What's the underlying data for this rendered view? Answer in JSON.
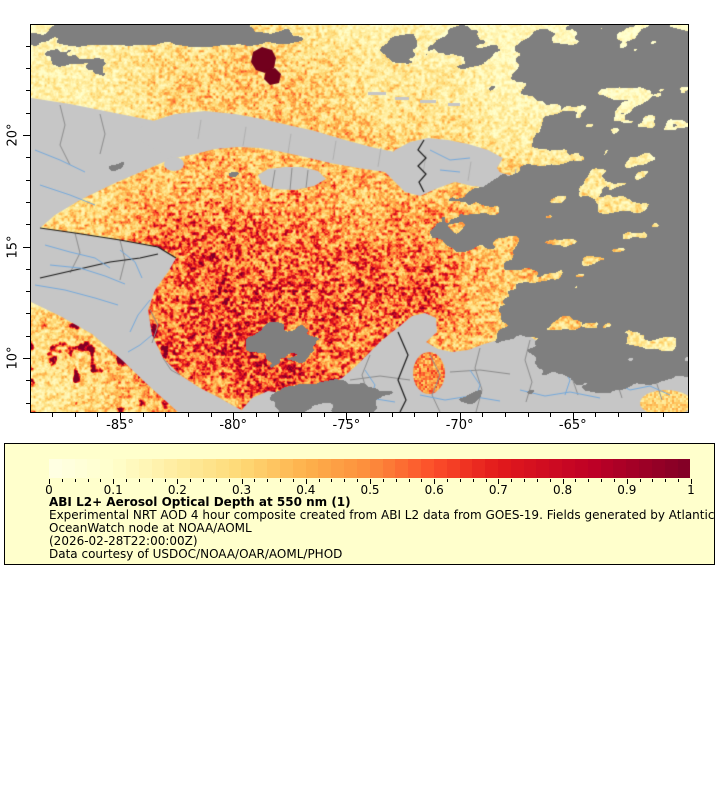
{
  "map_panel": {
    "lat_tick_labels": [
      "20°",
      "15°",
      "10°"
    ],
    "lon_tick_labels": [
      "-85°",
      "-80°",
      "-75°",
      "-70°",
      "-65°"
    ],
    "lat_tick_values": [
      20,
      15,
      10
    ],
    "lon_tick_values": [
      -85,
      -80,
      -75,
      -70,
      -65
    ]
  },
  "legend": {
    "colorbar_tick_labels": [
      "0",
      "0.1",
      "0.2",
      "0.3",
      "0.4",
      "0.5",
      "0.6",
      "0.7",
      "0.8",
      "0.9",
      "1"
    ],
    "colorbar_min": 0,
    "colorbar_max": 1,
    "title": "ABI L2+ Aerosol Optical Depth at 550 nm (1)",
    "description_line1": "Experimental NRT AOD 4 hour composite created from ABI L2 data from GOES-19. Fields generated by Atlantic",
    "description_line2": "OceanWatch node at NOAA/AOML",
    "timestamp": "(2026-02-28T22:00:00Z)",
    "credit": "Data courtesy of USDOC/NOAA/OAR/AOML/PHOD",
    "background": "#ffffcc"
  },
  "colors": {
    "colormap_stops": [
      {
        "t": 0.0,
        "color": "#ffffe5"
      },
      {
        "t": 0.1,
        "color": "#ffffcc"
      },
      {
        "t": 0.2,
        "color": "#ffeda0"
      },
      {
        "t": 0.3,
        "color": "#fed976"
      },
      {
        "t": 0.4,
        "color": "#feb24c"
      },
      {
        "t": 0.5,
        "color": "#fd8d3c"
      },
      {
        "t": 0.6,
        "color": "#fc4e2a"
      },
      {
        "t": 0.7,
        "color": "#e31a1c"
      },
      {
        "t": 0.85,
        "color": "#bd0026"
      },
      {
        "t": 1.0,
        "color": "#800026"
      }
    ],
    "land_no_data": "#c6c6c6",
    "cloud_no_data": "#7f7f7f",
    "river": "#74a9dc",
    "state_border": "#8c8c8c",
    "country_border": "#1a1a1a",
    "fire_plume": "#72001d",
    "frame": "#000000"
  },
  "chart_data": {
    "type": "heatmap",
    "title": "ABI L2+ Aerosol Optical Depth at 550 nm (1)",
    "colorbar_range": [
      0,
      1
    ],
    "colorbar_ticks": [
      0,
      0.1,
      0.2,
      0.3,
      0.4,
      0.5,
      0.6,
      0.7,
      0.8,
      0.9,
      1
    ],
    "x_axis": {
      "ticks_deg_lon": [
        -85,
        -80,
        -75,
        -70,
        -65
      ],
      "range_deg_lon": [
        -89,
        -60
      ]
    },
    "y_axis": {
      "ticks_deg_lat": [
        20,
        15,
        10
      ],
      "range_deg_lat": [
        7.6,
        24.9
      ]
    }
  }
}
